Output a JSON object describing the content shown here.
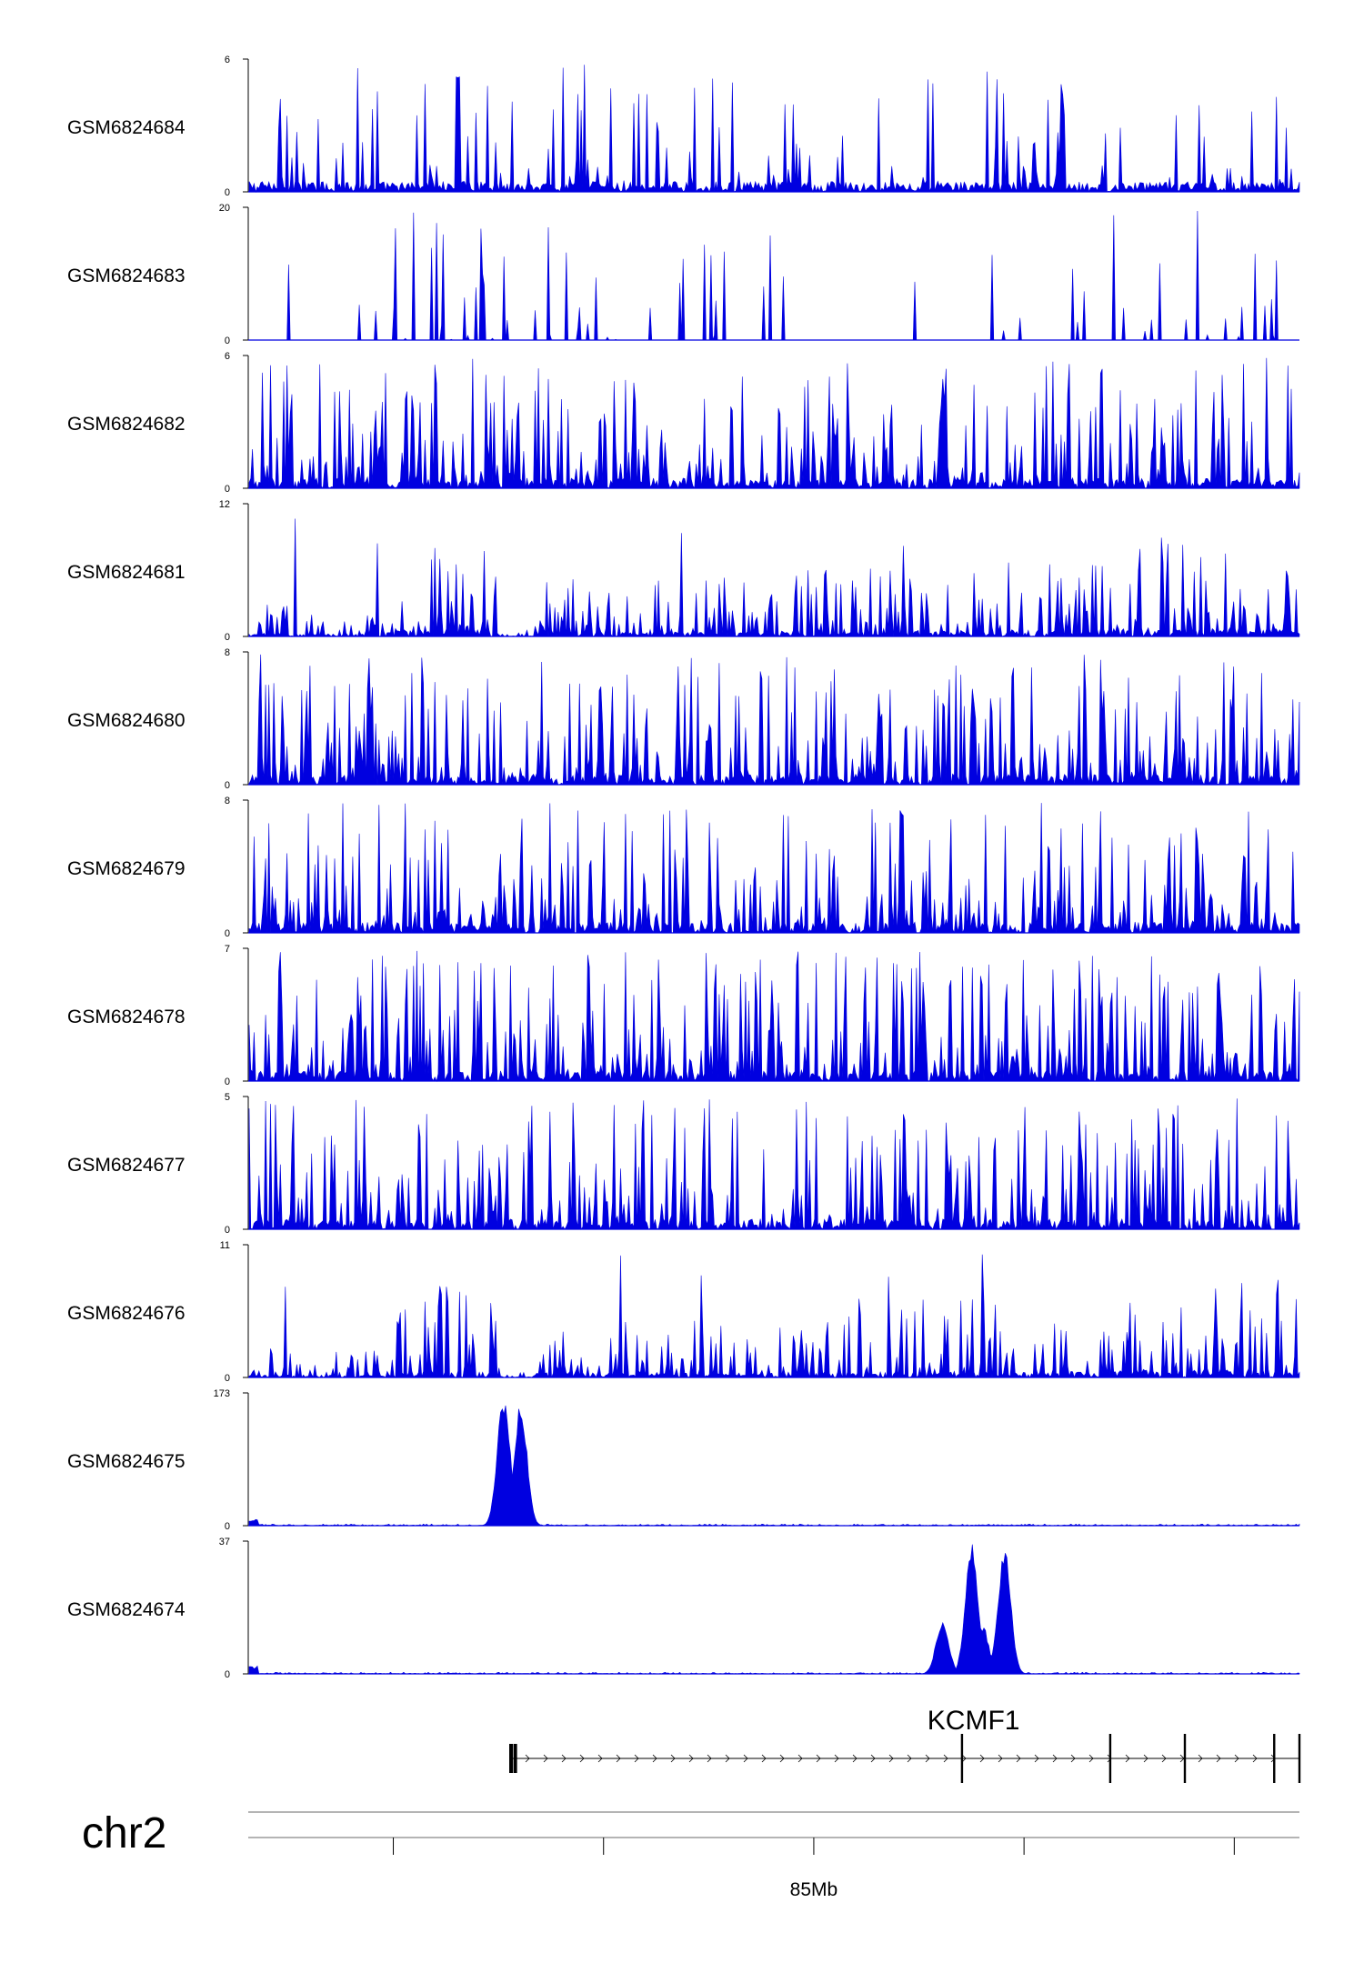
{
  "chart_data": {
    "type": "area",
    "title": "",
    "xlabel": "",
    "ylabel": "",
    "chromosome": "chr2",
    "genome_axis": {
      "labeled_tick": "85Mb",
      "unlabeled_tick_count": 4
    },
    "series_color": "#0000e0",
    "tracks": [
      {
        "name": "GSM6824684",
        "ymin": "0",
        "ymax": "6",
        "ylim": [
          0,
          6
        ],
        "profile": "sparse-uniform"
      },
      {
        "name": "GSM6824683",
        "ymin": "0",
        "ymax": "20",
        "ylim": [
          0,
          20
        ],
        "profile": "sparse-gapped"
      },
      {
        "name": "GSM6824682",
        "ymin": "0",
        "ymax": "6",
        "ylim": [
          0,
          6
        ],
        "profile": "dense-uniform"
      },
      {
        "name": "GSM6824681",
        "ymin": "0",
        "ymax": "12",
        "ylim": [
          0,
          12
        ],
        "profile": "dense-domains"
      },
      {
        "name": "GSM6824680",
        "ymin": "0",
        "ymax": "8",
        "ylim": [
          0,
          8
        ],
        "profile": "dense-uniform"
      },
      {
        "name": "GSM6824679",
        "ymin": "0",
        "ymax": "8",
        "ylim": [
          0,
          8
        ],
        "profile": "dense-uniform"
      },
      {
        "name": "GSM6824678",
        "ymin": "0",
        "ymax": "7",
        "ylim": [
          0,
          7
        ],
        "profile": "dense-uniform"
      },
      {
        "name": "GSM6824677",
        "ymin": "0",
        "ymax": "5",
        "ylim": [
          0,
          5
        ],
        "profile": "dense-uniform"
      },
      {
        "name": "GSM6824676",
        "ymin": "0",
        "ymax": "11",
        "ylim": [
          0,
          11
        ],
        "profile": "dense-domains"
      },
      {
        "name": "GSM6824675",
        "ymin": "0",
        "ymax": "173",
        "ylim": [
          0,
          173
        ],
        "profile": "peaks",
        "peaks": [
          {
            "pos": 0.242,
            "height": 173
          },
          {
            "pos": 0.258,
            "height": 163
          }
        ]
      },
      {
        "name": "GSM6824674",
        "ymin": "0",
        "ymax": "37",
        "ylim": [
          0,
          37
        ],
        "profile": "peaks",
        "peaks": [
          {
            "pos": 0.659,
            "height": 15
          },
          {
            "pos": 0.687,
            "height": 37
          },
          {
            "pos": 0.697,
            "height": 14
          },
          {
            "pos": 0.718,
            "height": 36
          }
        ]
      }
    ],
    "gene": {
      "name": "KCMF1",
      "strand": "+",
      "exons": [
        0.25,
        0.254,
        0.679,
        0.82,
        0.891,
        0.976,
        1.0
      ]
    }
  }
}
